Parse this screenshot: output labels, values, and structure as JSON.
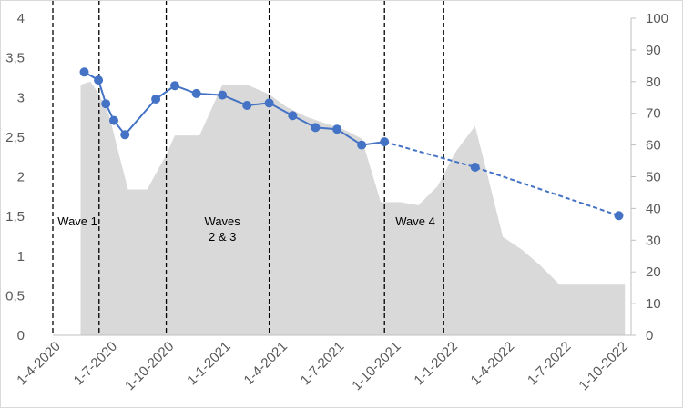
{
  "chart_data": {
    "type": "line",
    "title": "",
    "xlabel": "",
    "ylabel": "",
    "x_ticks": [
      "1-4-2020",
      "1-7-2020",
      "1-10-2020",
      "1-1-2021",
      "1-4-2021",
      "1-7-2021",
      "1-10-2021",
      "1-1-2022",
      "1-4-2022",
      "1-7-2022",
      "1-10-2022"
    ],
    "left_axis": {
      "min": 0,
      "max": 4,
      "step": 0.5,
      "tick_labels": [
        "0",
        "0,5",
        "1",
        "1,5",
        "2",
        "2,5",
        "3",
        "3,5",
        "4"
      ]
    },
    "right_axis": {
      "min": 0,
      "max": 100,
      "step": 10,
      "tick_labels": [
        "0",
        "10",
        "20",
        "30",
        "40",
        "50",
        "60",
        "70",
        "80",
        "90",
        "100"
      ]
    },
    "area_series": {
      "axis": "right",
      "color": "#d9d9d9",
      "points": [
        [
          "2020-04-15",
          0
        ],
        [
          "2020-04-15",
          79
        ],
        [
          "2020-05-01",
          80
        ],
        [
          "2020-05-15",
          76
        ],
        [
          "2020-06-01",
          69
        ],
        [
          "2020-06-15",
          58
        ],
        [
          "2020-07-01",
          46
        ],
        [
          "2020-08-01",
          46
        ],
        [
          "2020-09-01",
          57
        ],
        [
          "2020-09-15",
          63
        ],
        [
          "2020-10-25",
          63
        ],
        [
          "2020-12-01",
          79
        ],
        [
          "2021-01-10",
          79
        ],
        [
          "2021-02-15",
          76
        ],
        [
          "2021-03-15",
          72
        ],
        [
          "2021-04-15",
          69
        ],
        [
          "2021-05-15",
          67
        ],
        [
          "2021-06-15",
          65
        ],
        [
          "2021-07-15",
          62
        ],
        [
          "2021-08-15",
          42
        ],
        [
          "2021-09-15",
          42
        ],
        [
          "2021-10-15",
          41
        ],
        [
          "2021-11-15",
          47
        ],
        [
          "2021-12-15",
          58
        ],
        [
          "2022-01-15",
          66
        ],
        [
          "2022-02-01",
          53
        ],
        [
          "2022-03-01",
          31
        ],
        [
          "2022-04-01",
          27
        ],
        [
          "2022-05-01",
          22
        ],
        [
          "2022-06-01",
          16
        ],
        [
          "2022-07-01",
          16
        ],
        [
          "2022-08-01",
          16
        ],
        [
          "2022-09-15",
          16
        ],
        [
          "2022-09-15",
          0
        ]
      ]
    },
    "line_series": {
      "axis": "left",
      "color": "#4472c4",
      "points": [
        [
          "2020-04-21",
          3.32
        ],
        [
          "2020-05-14",
          3.22
        ],
        [
          "2020-05-26",
          2.92
        ],
        [
          "2020-06-08",
          2.71
        ],
        [
          "2020-06-26",
          2.53
        ],
        [
          "2020-08-15",
          2.98
        ],
        [
          "2020-09-15",
          3.15
        ],
        [
          "2020-10-20",
          3.05
        ],
        [
          "2020-12-01",
          3.03
        ],
        [
          "2021-01-10",
          2.9
        ],
        [
          "2021-02-15",
          2.93
        ],
        [
          "2021-03-25",
          2.77
        ],
        [
          "2021-05-01",
          2.62
        ],
        [
          "2021-06-05",
          2.6
        ],
        [
          "2021-07-15",
          2.4
        ],
        [
          "2021-08-21",
          2.44
        ]
      ],
      "projection": [
        [
          "2021-08-21",
          2.44
        ],
        [
          "2022-01-15",
          2.12
        ],
        [
          "2022-09-05",
          1.51
        ]
      ]
    },
    "wave_boundaries": [
      "2020-03-01",
      "2020-05-15",
      "2020-09-01",
      "2021-02-15",
      "2021-08-21",
      "2021-11-25"
    ],
    "annotations": [
      {
        "lines": [
          "Wave 1"
        ],
        "x": "2020-04-10",
        "y": 1.43
      },
      {
        "lines": [
          "Waves",
          "2 & 3"
        ],
        "x": "2020-12-01",
        "y": 1.43
      },
      {
        "lines": [
          "Wave 4"
        ],
        "x": "2021-10-10",
        "y": 1.43
      }
    ]
  }
}
